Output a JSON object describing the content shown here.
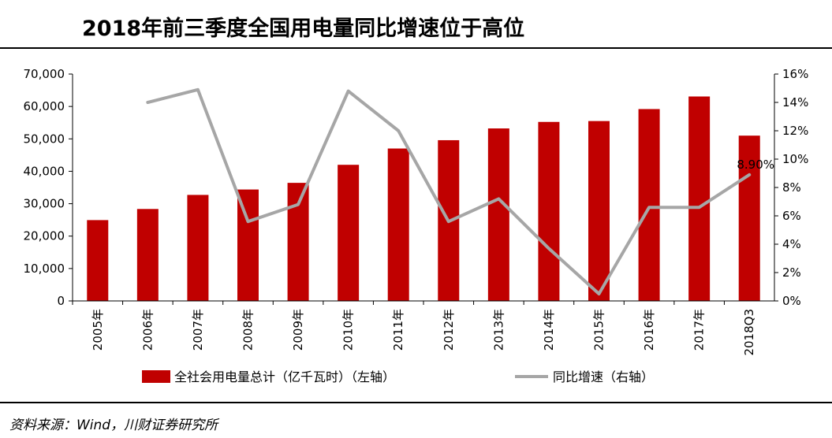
{
  "header": {
    "title": "2018年前三季度全国用电量同比增速位于高位"
  },
  "footer": {
    "source": "资料来源：Wind，川财证券研究所"
  },
  "chart_data": {
    "type": "bar",
    "categories": [
      "2005年",
      "2006年",
      "2007年",
      "2008年",
      "2009年",
      "2010年",
      "2011年",
      "2012年",
      "2013年",
      "2014年",
      "2015年",
      "2016年",
      "2017年",
      "2018Q3"
    ],
    "series": [
      {
        "name": "全社会用电量总计（亿千瓦时）（左轴）",
        "type": "bar",
        "axis": "left",
        "color": "#C00000",
        "values": [
          24940,
          28368,
          32712,
          34380,
          36430,
          41999,
          47026,
          49591,
          53223,
          55233,
          55500,
          59198,
          63077,
          51000
        ]
      },
      {
        "name": "同比增速（右轴）",
        "type": "line",
        "axis": "right",
        "color": "#A6A6A6",
        "values": [
          null,
          14.0,
          14.9,
          5.6,
          6.8,
          14.8,
          12.0,
          5.6,
          7.2,
          3.7,
          0.5,
          6.6,
          6.6,
          8.9
        ]
      }
    ],
    "y_left": {
      "ylim": [
        0,
        70000
      ],
      "ticks": [
        "0",
        "10,000",
        "20,000",
        "30,000",
        "40,000",
        "50,000",
        "60,000",
        "70,000"
      ]
    },
    "y_right": {
      "ylim": [
        0,
        16
      ],
      "ticks": [
        "0%",
        "2%",
        "4%",
        "6%",
        "8%",
        "10%",
        "12%",
        "14%",
        "16%"
      ]
    },
    "annotation": {
      "index": 13,
      "text": "8.90%"
    },
    "legend_position": "bottom",
    "grid": false
  }
}
